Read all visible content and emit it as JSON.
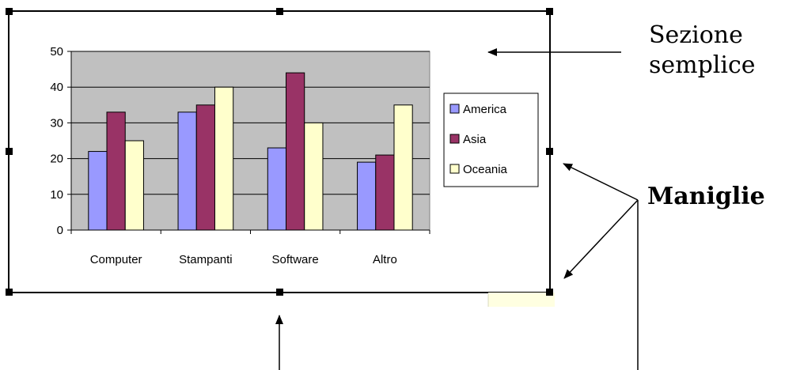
{
  "callouts": {
    "section_line1": "Sezione",
    "section_line2": "semplice",
    "handles": "Maniglie"
  },
  "colors": {
    "plot_area": "#c0c0c0",
    "america": "#9999ff",
    "asia": "#993366",
    "oceania": "#ffffcc",
    "tooltip": "#ffffe1"
  },
  "chart_data": {
    "type": "bar",
    "title": "",
    "xlabel": "",
    "ylabel": "",
    "ylim": [
      0,
      50
    ],
    "yticks": [
      0,
      10,
      20,
      30,
      40,
      50
    ],
    "grid": true,
    "legend_position": "right",
    "categories": [
      "Computer",
      "Stampanti",
      "Software",
      "Altro"
    ],
    "series": [
      {
        "name": "America",
        "values": [
          22,
          33,
          23,
          19
        ],
        "color": "#9999ff"
      },
      {
        "name": "Asia",
        "values": [
          33,
          35,
          44,
          21
        ],
        "color": "#993366"
      },
      {
        "name": "Oceania",
        "values": [
          25,
          40,
          30,
          35
        ],
        "color": "#ffffcc"
      }
    ]
  }
}
